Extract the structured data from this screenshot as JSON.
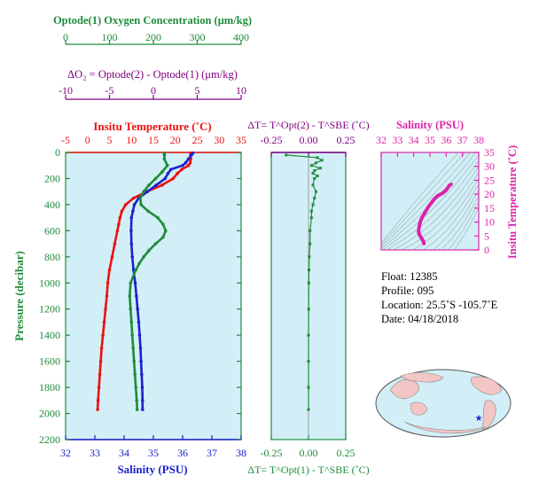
{
  "colors": {
    "panel_bg": "#d2eff7",
    "temperature": "#ee1111",
    "salinity": "#1a22cc",
    "oxygen": "#1e8c3a",
    "delta": "#800080",
    "ts_magenta": "#dd22aa",
    "land": "#f3c6c6"
  },
  "top_axes": {
    "oxygen": {
      "label": "Optode(1) Oxygen Concentration (μm/kg)",
      "ticks": [
        "0",
        "100",
        "200",
        "300",
        "400"
      ]
    },
    "delta_o2": {
      "label": "ΔO₂ = Optode(2) - Optode(1)    (μm/kg)",
      "ticks": [
        "-10",
        "-5",
        "0",
        "5",
        "10"
      ]
    }
  },
  "main_panel": {
    "temp_label": "Insitu Temperature (˚C)",
    "temp_ticks": [
      "-5",
      "0",
      "5",
      "10",
      "15",
      "20",
      "25",
      "30",
      "35"
    ],
    "sal_label": "Salinity (PSU)",
    "sal_ticks": [
      "32",
      "33",
      "34",
      "35",
      "36",
      "37",
      "38"
    ],
    "pressure_label": "Pressure (decibar)",
    "pressure_ticks": [
      "0",
      "200",
      "400",
      "600",
      "800",
      "1000",
      "1200",
      "1400",
      "1600",
      "1800",
      "2000",
      "2200"
    ]
  },
  "dt_panel": {
    "top_label": "ΔT= T^Opt(2) - T^SBE (˚C)",
    "bottom_label": "ΔT= T^Opt(1) - T^SBE (˚C)",
    "ticks": [
      "-0.25",
      "0.00",
      "0.25"
    ]
  },
  "ts_panel": {
    "sal_label": "Salinity (PSU)",
    "sal_ticks": [
      "32",
      "33",
      "34",
      "35",
      "36",
      "37",
      "38"
    ],
    "temp_label": "Insitu Temperature (˚C)",
    "temp_ticks": [
      "0",
      "5",
      "10",
      "15",
      "20",
      "25",
      "30",
      "35"
    ]
  },
  "float_info": {
    "float": "Float:  12385",
    "profile": "Profile:  095",
    "location": "Location:  25.5˚S  -105.7˚E",
    "date": "Date:  04/18/2018"
  },
  "chart_data": {
    "type": "line",
    "y_axis": {
      "label": "Pressure (decibar)",
      "range": [
        0,
        2200
      ],
      "inverted": true
    },
    "series": [
      {
        "name": "Insitu Temperature (˚C)",
        "x_range": [
          -5,
          35
        ],
        "pressure": [
          5,
          20,
          50,
          80,
          100,
          130,
          160,
          200,
          250,
          300,
          350,
          400,
          450,
          500,
          550,
          600,
          700,
          800,
          900,
          1000,
          1100,
          1200,
          1300,
          1400,
          1500,
          1600,
          1700,
          1800,
          1900,
          1970
        ],
        "values": [
          23.5,
          23.5,
          23.5,
          23.4,
          23.0,
          21.5,
          20.5,
          19.5,
          17.0,
          13.5,
          10.5,
          8.7,
          7.8,
          7.4,
          7.1,
          6.8,
          6.2,
          5.6,
          5.0,
          4.6,
          4.4,
          4.1,
          3.8,
          3.5,
          3.2,
          3.0,
          2.8,
          2.6,
          2.4,
          2.3
        ]
      },
      {
        "name": "Salinity (PSU)",
        "x_range": [
          32,
          38
        ],
        "pressure": [
          5,
          20,
          50,
          80,
          100,
          130,
          160,
          200,
          250,
          300,
          350,
          400,
          450,
          500,
          600,
          700,
          800,
          900,
          1000,
          1100,
          1200,
          1300,
          1400,
          1500,
          1600,
          1700,
          1800,
          1900,
          1970
        ],
        "values": [
          36.35,
          36.3,
          36.2,
          36.1,
          36.0,
          35.6,
          35.5,
          35.4,
          35.1,
          34.8,
          34.5,
          34.35,
          34.3,
          34.25,
          34.24,
          34.25,
          34.28,
          34.32,
          34.38,
          34.42,
          34.46,
          34.5,
          34.53,
          34.56,
          34.58,
          34.6,
          34.62,
          34.63,
          34.63
        ]
      },
      {
        "name": "Optode(1) Oxygen Concentration (μm/kg)",
        "x_range": [
          0,
          400
        ],
        "pressure": [
          5,
          20,
          50,
          100,
          150,
          200,
          250,
          300,
          350,
          400,
          450,
          500,
          550,
          600,
          650,
          700,
          750,
          800,
          850,
          900,
          1000,
          1100,
          1200,
          1300,
          1400,
          1500,
          1600,
          1700,
          1800,
          1900,
          1970
        ],
        "values": [
          225,
          225,
          225,
          232,
          220,
          205,
          190,
          178,
          170,
          172,
          188,
          210,
          222,
          228,
          222,
          205,
          190,
          178,
          168,
          160,
          148,
          146,
          148,
          150,
          152,
          154,
          156,
          158,
          160,
          162,
          163
        ]
      }
    ],
    "delta_t": {
      "x_range": [
        -0.25,
        0.25
      ],
      "pressure": [
        20,
        40,
        60,
        80,
        100,
        120,
        140,
        160,
        180,
        200,
        250,
        300,
        350,
        400,
        450,
        500,
        600,
        700,
        800,
        900,
        1000,
        1200,
        1400,
        1600,
        1800,
        1970
      ],
      "values": [
        -0.15,
        0.06,
        0.09,
        0.05,
        0.02,
        0.08,
        0.04,
        0.03,
        0.06,
        0.04,
        0.03,
        0.05,
        0.04,
        0.03,
        0.02,
        0.02,
        0.01,
        0.01,
        0.005,
        0.003,
        0.002,
        0.001,
        0.0,
        0.0,
        0.0,
        0.0
      ]
    },
    "ts_diagram": {
      "sal_range": [
        32,
        38
      ],
      "temp_range": [
        0,
        35
      ],
      "salinity": [
        36.3,
        36.2,
        36.0,
        35.8,
        35.5,
        35.3,
        35.1,
        34.9,
        34.7,
        34.5,
        34.4,
        34.35,
        34.32,
        34.3,
        34.32,
        34.4,
        34.5,
        34.6,
        34.63
      ],
      "temperature": [
        23.5,
        23.2,
        21.5,
        20.5,
        19.5,
        18.5,
        17.0,
        15.5,
        13.5,
        11.5,
        10.0,
        8.7,
        7.6,
        6.8,
        6.0,
        5.0,
        4.0,
        3.0,
        2.3
      ]
    }
  }
}
